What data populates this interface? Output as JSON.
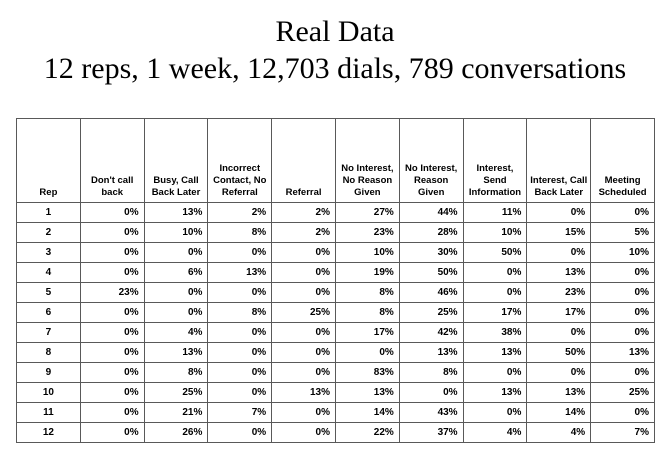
{
  "title": {
    "line1": "Real Data",
    "line2": "12 reps, 1 week, 12,703 dials, 789 conversations"
  },
  "table": {
    "columns": [
      "Rep",
      "Don't call back",
      "Busy, Call Back Later",
      "Incorrect Contact, No Referral",
      "Referral",
      "No Interest, No Reason Given",
      "No Interest, Reason Given",
      "Interest, Send Information",
      "Interest, Call Back Later",
      "Meeting Scheduled"
    ],
    "rows": [
      [
        "1",
        "0%",
        "13%",
        "2%",
        "2%",
        "27%",
        "44%",
        "11%",
        "0%",
        "0%"
      ],
      [
        "2",
        "0%",
        "10%",
        "8%",
        "2%",
        "23%",
        "28%",
        "10%",
        "15%",
        "5%"
      ],
      [
        "3",
        "0%",
        "0%",
        "0%",
        "0%",
        "10%",
        "30%",
        "50%",
        "0%",
        "10%"
      ],
      [
        "4",
        "0%",
        "6%",
        "13%",
        "0%",
        "19%",
        "50%",
        "0%",
        "13%",
        "0%"
      ],
      [
        "5",
        "23%",
        "0%",
        "0%",
        "0%",
        "8%",
        "46%",
        "0%",
        "23%",
        "0%"
      ],
      [
        "6",
        "0%",
        "0%",
        "8%",
        "25%",
        "8%",
        "25%",
        "17%",
        "17%",
        "0%"
      ],
      [
        "7",
        "0%",
        "4%",
        "0%",
        "0%",
        "17%",
        "42%",
        "38%",
        "0%",
        "0%"
      ],
      [
        "8",
        "0%",
        "13%",
        "0%",
        "0%",
        "0%",
        "13%",
        "13%",
        "50%",
        "13%"
      ],
      [
        "9",
        "0%",
        "8%",
        "0%",
        "0%",
        "83%",
        "8%",
        "0%",
        "0%",
        "0%"
      ],
      [
        "10",
        "0%",
        "25%",
        "0%",
        "13%",
        "13%",
        "0%",
        "13%",
        "13%",
        "25%"
      ],
      [
        "11",
        "0%",
        "21%",
        "7%",
        "0%",
        "14%",
        "43%",
        "0%",
        "14%",
        "0%"
      ],
      [
        "12",
        "0%",
        "26%",
        "0%",
        "0%",
        "22%",
        "37%",
        "4%",
        "4%",
        "7%"
      ]
    ]
  },
  "colors": {
    "background": "#ffffff",
    "text": "#000000",
    "grid_line": "#595959"
  }
}
